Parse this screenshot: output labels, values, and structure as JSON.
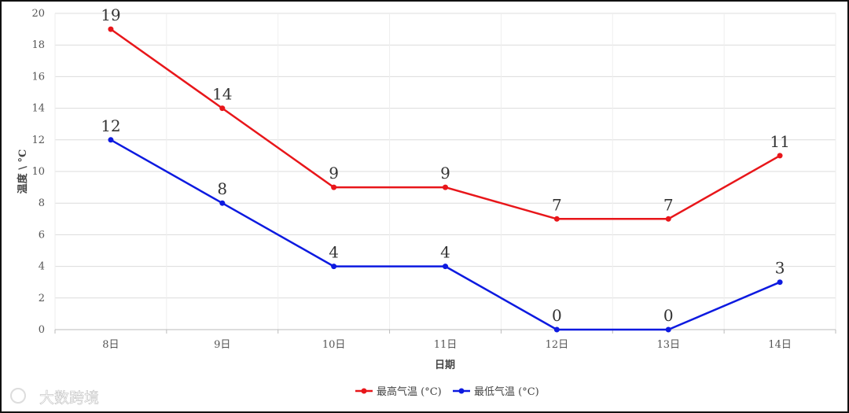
{
  "chart_data": {
    "type": "line",
    "categories": [
      "8日",
      "9日",
      "10日",
      "11日",
      "12日",
      "13日",
      "14日"
    ],
    "series": [
      {
        "name": "最高气温 (°C)",
        "values": [
          19,
          14,
          9,
          9,
          7,
          7,
          11
        ],
        "color": "#e8161a"
      },
      {
        "name": "最低气温 (°C)",
        "values": [
          12,
          8,
          4,
          4,
          0,
          0,
          3
        ],
        "color": "#0d1ae0"
      }
    ],
    "ylim": [
      0,
      20
    ],
    "yticks": [
      0,
      2,
      4,
      6,
      8,
      10,
      12,
      14,
      16,
      18,
      20
    ],
    "xlabel": "日期",
    "ylabel": "温度 \\ °C",
    "grid": true,
    "legend": "bottom-center",
    "data_labels": true
  },
  "watermark": {
    "text": "大数跨境"
  }
}
